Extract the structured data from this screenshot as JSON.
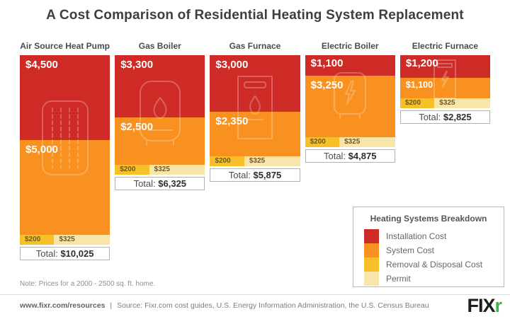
{
  "title": "A Cost Comparison of Residential Heating System Replacement",
  "note": "Note: Prices for a 2000 - 2500 sq. ft. home.",
  "colors": {
    "installation": "#CF2B26",
    "system": "#F8911F",
    "removal": "#F7C028",
    "permit": "#F8E5AA"
  },
  "chart_data": {
    "type": "bar",
    "stacked": true,
    "orientation": "vertical-top-aligned",
    "title": "A Cost Comparison of Residential Heating System Replacement",
    "categories": [
      "Air Source Heat Pump",
      "Gas Boiler",
      "Gas Furnace",
      "Electric Boiler",
      "Electric Furnace"
    ],
    "series": [
      {
        "name": "Installation Cost",
        "color": "#CF2B26",
        "values": [
          4500,
          3300,
          3000,
          1100,
          1200
        ]
      },
      {
        "name": "System Cost",
        "color": "#F8911F",
        "values": [
          5000,
          2500,
          2350,
          3250,
          1100
        ]
      },
      {
        "name": "Removal & Disposal Cost",
        "color": "#F7C028",
        "values": [
          200,
          200,
          200,
          200,
          200
        ]
      },
      {
        "name": "Permit",
        "color": "#F8E5AA",
        "values": [
          325,
          325,
          325,
          325,
          325
        ]
      }
    ],
    "totals": [
      10025,
      6325,
      5875,
      4875,
      2825
    ],
    "grid": false,
    "legend_position": "bottom-right",
    "annotations": [
      "Note: Prices for a 2000 - 2500 sq. ft. home."
    ]
  },
  "columns": [
    {
      "header": "Air Source Heat Pump",
      "icon": "heat-pump-icon",
      "installation": 4500,
      "installation_label": "$4,500",
      "system": 5000,
      "system_label": "$5,000",
      "removal": 200,
      "removal_label": "$200",
      "permit": 325,
      "permit_label": "$325",
      "total_label": "Total:",
      "total_value": "$10,025",
      "small_system": false
    },
    {
      "header": "Gas Boiler",
      "icon": "gas-boiler-icon",
      "installation": 3300,
      "installation_label": "$3,300",
      "system": 2500,
      "system_label": "$2,500",
      "removal": 200,
      "removal_label": "$200",
      "permit": 325,
      "permit_label": "$325",
      "total_label": "Total:",
      "total_value": "$6,325",
      "small_system": false
    },
    {
      "header": "Gas Furnace",
      "icon": "gas-furnace-icon",
      "installation": 3000,
      "installation_label": "$3,000",
      "system": 2350,
      "system_label": "$2,350",
      "removal": 200,
      "removal_label": "$200",
      "permit": 325,
      "permit_label": "$325",
      "total_label": "Total:",
      "total_value": "$5,875",
      "small_system": false
    },
    {
      "header": "Electric Boiler",
      "icon": "electric-boiler-icon",
      "installation": 1100,
      "installation_label": "$1,100",
      "system": 3250,
      "system_label": "$3,250",
      "removal": 200,
      "removal_label": "$200",
      "permit": 325,
      "permit_label": "$325",
      "total_label": "Total:",
      "total_value": "$4,875",
      "small_system": false
    },
    {
      "header": "Electric Furnace",
      "icon": "electric-furnace-icon",
      "installation": 1200,
      "installation_label": "$1,200",
      "system": 1100,
      "system_label": "$1,100",
      "removal": 200,
      "removal_label": "$200",
      "permit": 325,
      "permit_label": "$325",
      "total_label": "Total:",
      "total_value": "$2,825",
      "small_system": true
    }
  ],
  "legend": {
    "title": "Heating Systems Breakdown",
    "items": [
      {
        "label": "Installation Cost",
        "color": "#CF2B26"
      },
      {
        "label": "System Cost",
        "color": "#F8911F"
      },
      {
        "label": "Removal & Disposal Cost",
        "color": "#F7C028"
      },
      {
        "label": "Permit",
        "color": "#F8E5AA"
      }
    ]
  },
  "footer": {
    "url": "www.fixr.com/resources",
    "separator": "|",
    "source": "Source: Fixr.com cost guides, U.S. Energy Information Administration, the U.S. Census Bureau",
    "logo_fix": "FIX",
    "logo_r": "r"
  }
}
